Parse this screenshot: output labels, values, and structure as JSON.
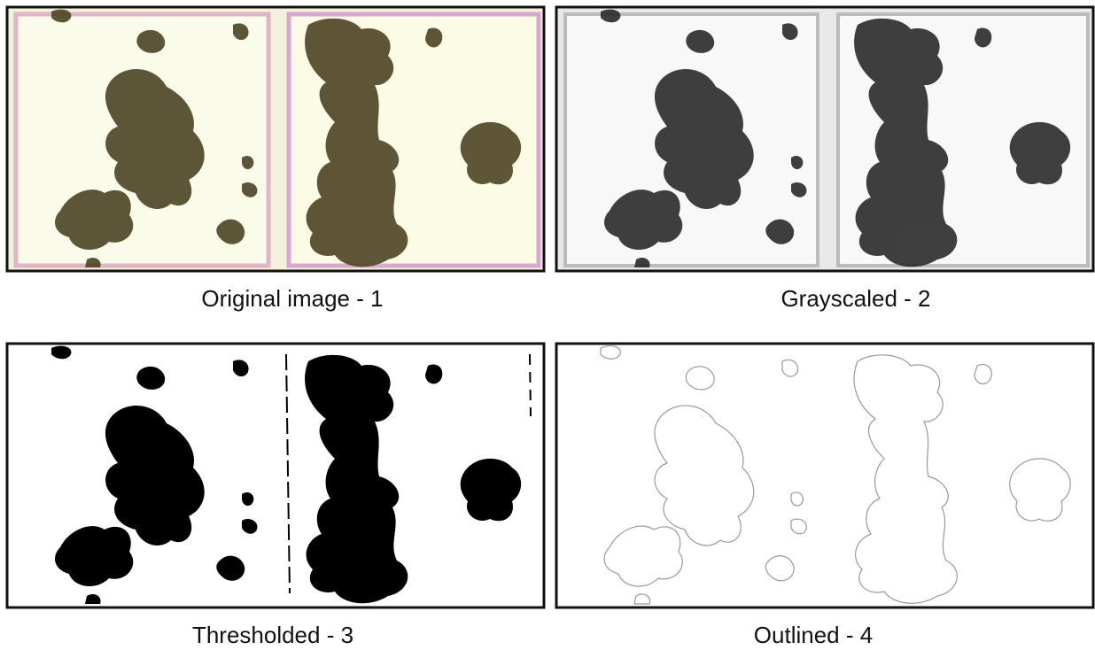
{
  "panels": [
    {
      "caption": "Original image - 1"
    },
    {
      "caption": "Grayscaled - 2"
    },
    {
      "caption": "Thresholded - 3"
    },
    {
      "caption": "Outlined - 4"
    }
  ]
}
